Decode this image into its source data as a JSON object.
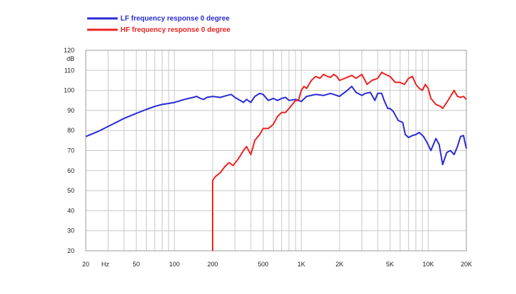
{
  "chart_data": {
    "type": "line",
    "title": "",
    "xlabel": "Hz",
    "ylabel": "dB",
    "xscale": "log",
    "xlim": [
      20,
      20000
    ],
    "ylim": [
      20,
      120
    ],
    "grid": true,
    "legend_position": "top-left",
    "x_ticks": [
      {
        "value": 20,
        "label": "20"
      },
      {
        "value": 50,
        "label": "50"
      },
      {
        "value": 100,
        "label": "100"
      },
      {
        "value": 200,
        "label": "200"
      },
      {
        "value": 500,
        "label": "500"
      },
      {
        "value": 1000,
        "label": "1K"
      },
      {
        "value": 2000,
        "label": "2K"
      },
      {
        "value": 5000,
        "label": "5K"
      },
      {
        "value": 10000,
        "label": "10K"
      },
      {
        "value": 20000,
        "label": "20K"
      }
    ],
    "y_ticks": [
      20,
      30,
      40,
      50,
      60,
      70,
      80,
      90,
      100,
      110,
      120
    ],
    "series": [
      {
        "name": "LF frequency response 0 degree",
        "color": "#2a2ad6",
        "points": [
          [
            20,
            77
          ],
          [
            25,
            79.5
          ],
          [
            30,
            82
          ],
          [
            40,
            86
          ],
          [
            50,
            88.5
          ],
          [
            60,
            90.5
          ],
          [
            70,
            92
          ],
          [
            80,
            93
          ],
          [
            90,
            93.5
          ],
          [
            100,
            94
          ],
          [
            120,
            95.5
          ],
          [
            140,
            96.5
          ],
          [
            150,
            97
          ],
          [
            160,
            96
          ],
          [
            170,
            95.5
          ],
          [
            180,
            96.5
          ],
          [
            200,
            97
          ],
          [
            230,
            96.5
          ],
          [
            260,
            97.5
          ],
          [
            280,
            98
          ],
          [
            300,
            96.5
          ],
          [
            330,
            95
          ],
          [
            350,
            94
          ],
          [
            370,
            95.5
          ],
          [
            400,
            94
          ],
          [
            430,
            97
          ],
          [
            470,
            98.5
          ],
          [
            500,
            98
          ],
          [
            550,
            95
          ],
          [
            600,
            96
          ],
          [
            650,
            95
          ],
          [
            700,
            96
          ],
          [
            750,
            96.5
          ],
          [
            800,
            95
          ],
          [
            900,
            95.5
          ],
          [
            1000,
            94.5
          ],
          [
            1100,
            97
          ],
          [
            1300,
            98
          ],
          [
            1500,
            97.5
          ],
          [
            1700,
            98.5
          ],
          [
            2000,
            97
          ],
          [
            2300,
            100
          ],
          [
            2500,
            102
          ],
          [
            2700,
            99
          ],
          [
            3000,
            97.5
          ],
          [
            3200,
            98.5
          ],
          [
            3500,
            99
          ],
          [
            3800,
            95
          ],
          [
            4000,
            98.5
          ],
          [
            4300,
            98.5
          ],
          [
            4500,
            95
          ],
          [
            4800,
            91
          ],
          [
            5000,
            91
          ],
          [
            5300,
            89.5
          ],
          [
            5800,
            85
          ],
          [
            6300,
            84
          ],
          [
            6600,
            78
          ],
          [
            7000,
            76.5
          ],
          [
            7500,
            77.5
          ],
          [
            8000,
            78
          ],
          [
            8500,
            79
          ],
          [
            9200,
            77
          ],
          [
            9800,
            74
          ],
          [
            10500,
            70
          ],
          [
            11500,
            76
          ],
          [
            12200,
            73
          ],
          [
            13000,
            63
          ],
          [
            14000,
            69
          ],
          [
            15000,
            70
          ],
          [
            16000,
            68
          ],
          [
            17000,
            72
          ],
          [
            18000,
            77
          ],
          [
            19000,
            77.5
          ],
          [
            19500,
            74
          ],
          [
            20000,
            71
          ]
        ]
      },
      {
        "name": "HF frequency response 0 degree",
        "color": "#ee2222",
        "points": [
          [
            200,
            20
          ],
          [
            200,
            55
          ],
          [
            210,
            57
          ],
          [
            230,
            59
          ],
          [
            250,
            62
          ],
          [
            270,
            64
          ],
          [
            290,
            62.5
          ],
          [
            320,
            66
          ],
          [
            350,
            70
          ],
          [
            370,
            72
          ],
          [
            400,
            68
          ],
          [
            430,
            75
          ],
          [
            470,
            78
          ],
          [
            500,
            81
          ],
          [
            550,
            81
          ],
          [
            600,
            83
          ],
          [
            650,
            87
          ],
          [
            700,
            89
          ],
          [
            750,
            89
          ],
          [
            800,
            91
          ],
          [
            850,
            93
          ],
          [
            900,
            95
          ],
          [
            950,
            95
          ],
          [
            1000,
            100
          ],
          [
            1050,
            102
          ],
          [
            1100,
            101
          ],
          [
            1200,
            105
          ],
          [
            1300,
            107
          ],
          [
            1400,
            106
          ],
          [
            1500,
            108
          ],
          [
            1600,
            107
          ],
          [
            1700,
            106.5
          ],
          [
            1800,
            108
          ],
          [
            1900,
            107
          ],
          [
            2000,
            105
          ],
          [
            2200,
            106
          ],
          [
            2500,
            107.5
          ],
          [
            2700,
            106
          ],
          [
            3000,
            108
          ],
          [
            3300,
            103
          ],
          [
            3600,
            105
          ],
          [
            4000,
            106
          ],
          [
            4300,
            109
          ],
          [
            4600,
            108
          ],
          [
            5000,
            107
          ],
          [
            5500,
            104
          ],
          [
            6000,
            104
          ],
          [
            6500,
            103
          ],
          [
            7000,
            106
          ],
          [
            7500,
            107
          ],
          [
            8000,
            103
          ],
          [
            8500,
            101
          ],
          [
            9000,
            100
          ],
          [
            9500,
            103
          ],
          [
            10000,
            101
          ],
          [
            10500,
            96
          ],
          [
            11500,
            93
          ],
          [
            12500,
            92
          ],
          [
            13000,
            91
          ],
          [
            14000,
            94
          ],
          [
            15000,
            97
          ],
          [
            16000,
            100
          ],
          [
            17000,
            97
          ],
          [
            18000,
            96.5
          ],
          [
            19000,
            97
          ],
          [
            20000,
            95.5
          ]
        ]
      }
    ]
  }
}
